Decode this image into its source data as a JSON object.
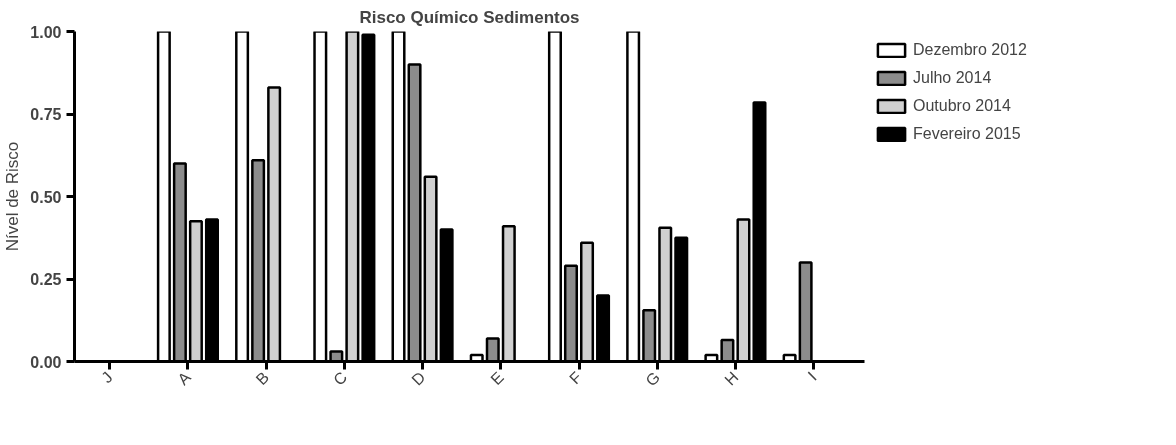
{
  "chart_data": {
    "type": "bar",
    "title": "Risco Químico Sedimentos",
    "ylabel": "Nível de Risco",
    "categories": [
      "J",
      "A",
      "B",
      "C",
      "D",
      "E",
      "F",
      "G",
      "H",
      "I"
    ],
    "series": [
      {
        "name": "Dezembro 2012",
        "color": "#ffffff",
        "values": [
          null,
          1.0,
          1.0,
          1.0,
          1.0,
          0.02,
          1.0,
          1.0,
          0.02,
          0.02
        ]
      },
      {
        "name": "Julho 2014",
        "color": "#8c8c8c",
        "values": [
          null,
          0.6,
          0.61,
          0.03,
          0.9,
          0.07,
          0.29,
          0.155,
          0.065,
          0.3
        ]
      },
      {
        "name": "Outubro 2014",
        "color": "#d0d0d0",
        "values": [
          null,
          0.425,
          0.83,
          1.0,
          0.56,
          0.41,
          0.36,
          0.405,
          0.43,
          null
        ]
      },
      {
        "name": "Fevereiro 2015",
        "color": "#000000",
        "values": [
          null,
          0.43,
          null,
          0.99,
          0.4,
          null,
          0.2,
          0.375,
          0.785,
          null
        ]
      }
    ],
    "ylim": [
      0,
      1.0
    ],
    "yticks": [
      {
        "value": 0,
        "label": "0.00"
      },
      {
        "value": 0.25,
        "label": "0.25"
      },
      {
        "value": 0.5,
        "label": "0.50"
      },
      {
        "value": 0.75,
        "label": "0.75"
      },
      {
        "value": 1.0,
        "label": "1.00"
      }
    ],
    "grid": false,
    "legend": "right"
  }
}
